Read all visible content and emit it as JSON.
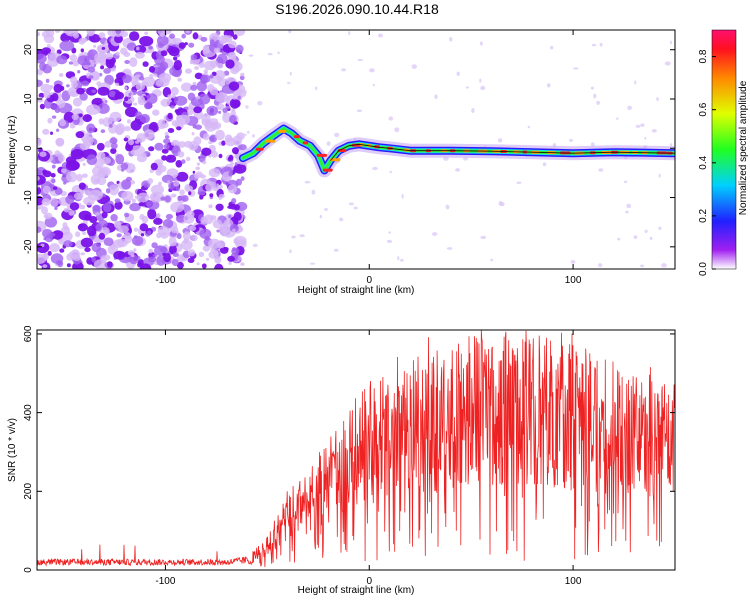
{
  "title": "S196.2026.090.10.44.R18",
  "spectrogram": {
    "type": "heatmap",
    "xlabel": "Height of straight line (km)",
    "ylabel": "Frequency (Hz)",
    "xlim": [
      -163,
      150
    ],
    "ylim": [
      -24.5,
      24
    ],
    "xticks": [
      -100,
      0,
      100
    ],
    "yticks": [
      -20,
      -10,
      0,
      10,
      20
    ],
    "noise_region_x": [
      -163,
      -62
    ],
    "signal_start_x": -62,
    "signal_track": [
      [
        -62,
        -2
      ],
      [
        -57,
        -1
      ],
      [
        -52,
        1
      ],
      [
        -47,
        2.5
      ],
      [
        -42,
        4
      ],
      [
        -38,
        3
      ],
      [
        -34,
        1.5
      ],
      [
        -29,
        0.5
      ],
      [
        -25,
        -1.5
      ],
      [
        -22,
        -4.5
      ],
      [
        -19,
        -2.5
      ],
      [
        -15,
        -0.5
      ],
      [
        -10,
        0.5
      ],
      [
        -5,
        0.8
      ],
      [
        0,
        0.5
      ],
      [
        5,
        0.2
      ],
      [
        10,
        0
      ],
      [
        20,
        -0.5
      ],
      [
        40,
        -0.5
      ],
      [
        60,
        -0.6
      ],
      [
        80,
        -0.8
      ],
      [
        100,
        -1.0
      ],
      [
        120,
        -0.8
      ],
      [
        150,
        -1.0
      ]
    ]
  },
  "colorbar": {
    "label": "Normalized spectral amplitude",
    "range": [
      0,
      0.9
    ],
    "ticks": [
      "0.0",
      "0.2",
      "0.4",
      "0.6",
      "0.8"
    ]
  },
  "snr": {
    "type": "line",
    "xlabel": "Height of straight line (km)",
    "ylabel": "SNR (10 * v/v)",
    "xlim": [
      -163,
      150
    ],
    "ylim": [
      0,
      610
    ],
    "xticks": [
      -100,
      0,
      100
    ],
    "yticks": [
      0,
      200,
      400,
      600
    ],
    "color": "#ee2222",
    "envelope": [
      [
        -163,
        20
      ],
      [
        -70,
        20
      ],
      [
        -60,
        25
      ],
      [
        -50,
        60
      ],
      [
        -45,
        100
      ],
      [
        -40,
        140
      ],
      [
        -30,
        180
      ],
      [
        -20,
        230
      ],
      [
        -10,
        280
      ],
      [
        0,
        330
      ],
      [
        20,
        370
      ],
      [
        40,
        400
      ],
      [
        60,
        420
      ],
      [
        80,
        420
      ],
      [
        100,
        400
      ],
      [
        120,
        370
      ],
      [
        140,
        340
      ],
      [
        150,
        330
      ]
    ]
  },
  "colors": {
    "noise_purple": "#7a22e6",
    "signal_line": "#111111"
  }
}
